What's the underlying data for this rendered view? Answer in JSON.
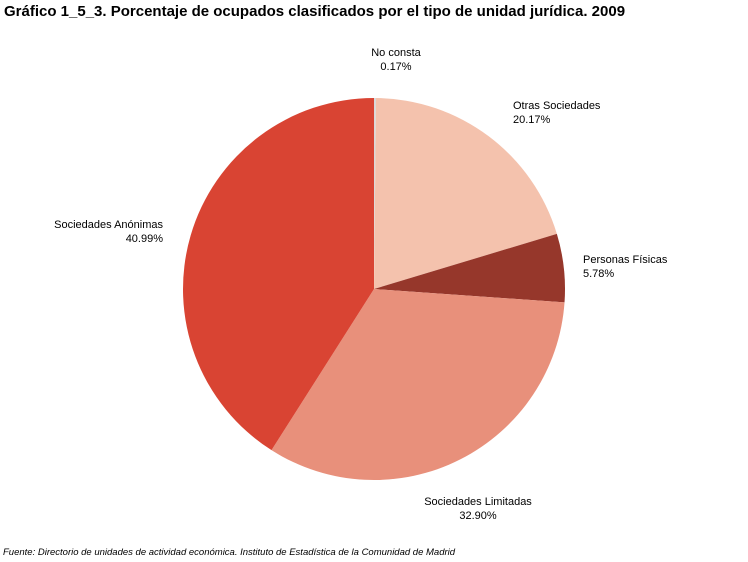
{
  "title": "Gráfico 1_5_3. Porcentaje de ocupados clasificados por el tipo de unidad jurídica. 2009",
  "source": "Fuente: Directorio de unidades de actividad económica. Instituto de Estadística de la Comunidad de Madrid",
  "chart_data": {
    "type": "pie",
    "title": "Gráfico 1_5_3. Porcentaje de ocupados clasificados por el tipo de unidad jurídica. 2009",
    "slices": [
      {
        "label": "No consta",
        "value": 0.17,
        "value_label": "0.17%",
        "color": "#d9d9d9"
      },
      {
        "label": "Otras Sociedades",
        "value": 20.17,
        "value_label": "20.17%",
        "color": "#f4c2ad"
      },
      {
        "label": "Personas Físicas",
        "value": 5.78,
        "value_label": "5.78%",
        "color": "#96372b"
      },
      {
        "label": "Sociedades Limitadas",
        "value": 32.9,
        "value_label": "32.90%",
        "color": "#e8907b"
      },
      {
        "label": "Sociedades Anónimas",
        "value": 40.99,
        "value_label": "40.99%",
        "color": "#d94433"
      }
    ],
    "start": "12 o'clock",
    "direction": "clockwise",
    "legend": "none",
    "labels": "outside"
  }
}
